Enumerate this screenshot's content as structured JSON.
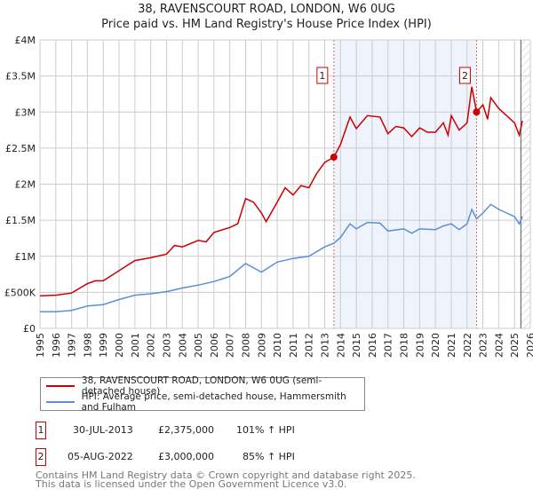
{
  "header": {
    "title": "38, RAVENSCOURT ROAD, LONDON, W6 0UG",
    "subtitle": "Price paid vs. HM Land Registry's House Price Index (HPI)"
  },
  "chart_data": {
    "type": "line",
    "xlim": [
      1995,
      2026
    ],
    "ylim": [
      0,
      4000000
    ],
    "x_ticks": [
      "1995",
      "1996",
      "1997",
      "1998",
      "1999",
      "2000",
      "2001",
      "2002",
      "2003",
      "2004",
      "2005",
      "2006",
      "2007",
      "2008",
      "2009",
      "2010",
      "2011",
      "2012",
      "2013",
      "2014",
      "2015",
      "2016",
      "2017",
      "2018",
      "2019",
      "2020",
      "2021",
      "2022",
      "2023",
      "2024",
      "2025",
      "2026"
    ],
    "y_ticks": [
      {
        "v": 0,
        "l": "£0"
      },
      {
        "v": 500000,
        "l": "£500K"
      },
      {
        "v": 1000000,
        "l": "£1M"
      },
      {
        "v": 1500000,
        "l": "£1.5M"
      },
      {
        "v": 2000000,
        "l": "£2M"
      },
      {
        "v": 2500000,
        "l": "£2.5M"
      },
      {
        "v": 3000000,
        "l": "£3M"
      },
      {
        "v": 3500000,
        "l": "£3.5M"
      },
      {
        "v": 4000000,
        "l": "£4M"
      }
    ],
    "grid": true,
    "shaded_range": [
      2013.58,
      2022.6
    ],
    "hatched_from": 2025.4,
    "series": [
      {
        "name": "38, RAVENSCOURT ROAD, LONDON, W6 0UG (semi-detached house)",
        "color": "#cc0000",
        "x": [
          1995,
          1996,
          1997,
          1998,
          1998.5,
          1999,
          2000,
          2001,
          2002,
          2003,
          2003.5,
          2004,
          2005,
          2005.5,
          2006,
          2007,
          2007.5,
          2008,
          2008.5,
          2009,
          2009.3,
          2010,
          2010.5,
          2011,
          2011.5,
          2012,
          2012.5,
          2013,
          2013.58,
          2014,
          2014.6,
          2015,
          2015.7,
          2016.5,
          2017,
          2017.5,
          2018,
          2018.5,
          2019,
          2019.5,
          2020,
          2020.5,
          2020.8,
          2021,
          2021.5,
          2022,
          2022.3,
          2022.6,
          2023,
          2023.3,
          2023.5,
          2024,
          2024.5,
          2025,
          2025.3,
          2025.5
        ],
        "y": [
          450000,
          460000,
          490000,
          620000,
          660000,
          660000,
          800000,
          940000,
          980000,
          1030000,
          1150000,
          1130000,
          1220000,
          1200000,
          1330000,
          1400000,
          1450000,
          1800000,
          1750000,
          1600000,
          1480000,
          1750000,
          1950000,
          1850000,
          1980000,
          1950000,
          2150000,
          2300000,
          2375000,
          2550000,
          2930000,
          2770000,
          2950000,
          2930000,
          2700000,
          2800000,
          2780000,
          2660000,
          2780000,
          2720000,
          2720000,
          2850000,
          2680000,
          2950000,
          2750000,
          2850000,
          3350000,
          3000000,
          3100000,
          2900000,
          3200000,
          3050000,
          2950000,
          2850000,
          2680000,
          2880000
        ]
      },
      {
        "name": "HPI: Average price, semi-detached house, Hammersmith and Fulham",
        "color": "#5b8fd6",
        "x": [
          1995,
          1996,
          1997,
          1998,
          1999,
          2000,
          2001,
          2002,
          2003,
          2004,
          2005,
          2006,
          2007,
          2008,
          2009,
          2010,
          2011,
          2012,
          2013,
          2013.58,
          2014,
          2014.6,
          2015,
          2015.7,
          2016.5,
          2017,
          2018,
          2018.5,
          2019,
          2020,
          2020.5,
          2021,
          2021.5,
          2022,
          2022.3,
          2022.6,
          2023,
          2023.5,
          2024,
          2024.5,
          2025,
          2025.3,
          2025.5
        ],
        "y": [
          230000,
          230000,
          250000,
          310000,
          330000,
          400000,
          460000,
          480000,
          510000,
          560000,
          600000,
          650000,
          720000,
          900000,
          780000,
          920000,
          970000,
          1000000,
          1130000,
          1180000,
          1260000,
          1450000,
          1380000,
          1470000,
          1460000,
          1350000,
          1380000,
          1320000,
          1380000,
          1370000,
          1420000,
          1450000,
          1370000,
          1450000,
          1650000,
          1520000,
          1600000,
          1720000,
          1650000,
          1600000,
          1550000,
          1450000,
          1550000
        ]
      }
    ],
    "annotations": [
      {
        "label": "1",
        "x": 2013.58,
        "y": 2375000,
        "date": "30-JUL-2013",
        "price": "£2,375,000",
        "hpi": "101% ↑ HPI"
      },
      {
        "label": "2",
        "x": 2022.6,
        "y": 3000000,
        "date": "05-AUG-2022",
        "price": "£3,000,000",
        "hpi": "85% ↑ HPI"
      }
    ]
  },
  "footer": {
    "line1": "Contains HM Land Registry data © Crown copyright and database right 2025.",
    "line2": "This data is licensed under the Open Government Licence v3.0."
  }
}
